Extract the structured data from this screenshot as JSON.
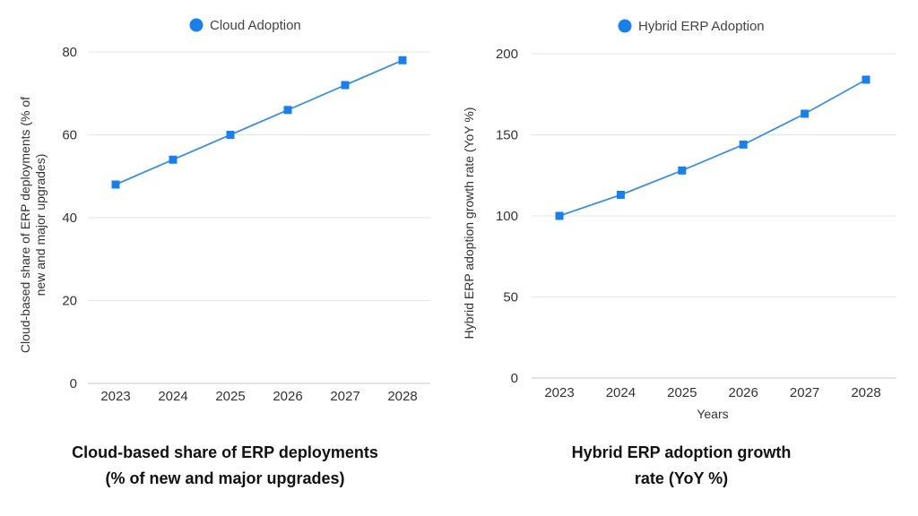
{
  "colors": {
    "series": "#1a7fe8",
    "line": "#3d8fd6"
  },
  "chart_data": [
    {
      "type": "line",
      "legend": "Cloud Adoption",
      "legend_position": "top",
      "categories": [
        "2023",
        "2024",
        "2025",
        "2026",
        "2027",
        "2028"
      ],
      "series": [
        {
          "name": "Cloud Adoption",
          "values": [
            48,
            54,
            60,
            66,
            72,
            78
          ]
        }
      ],
      "ylim": [
        0,
        80
      ],
      "yticks": [
        "0",
        "20",
        "40",
        "60",
        "80"
      ],
      "ylabel_lines": [
        "Cloud-based share of ERP deployments (% of",
        "new and major upgrades)"
      ],
      "xlabel": "",
      "title_lines": [
        "Cloud-based share of ERP deployments",
        "(% of new and major upgrades)"
      ],
      "grid": true
    },
    {
      "type": "line",
      "legend": "Hybrid ERP Adoption",
      "legend_position": "top",
      "categories": [
        "2023",
        "2024",
        "2025",
        "2026",
        "2027",
        "2028"
      ],
      "series": [
        {
          "name": "Hybrid ERP Adoption",
          "values": [
            100,
            113,
            128,
            144,
            163,
            184
          ]
        }
      ],
      "ylim": [
        0,
        200
      ],
      "yticks": [
        "0",
        "50",
        "100",
        "150",
        "200"
      ],
      "ylabel_lines": [
        "Hybrid ERP adoption growth rate (YoY %)"
      ],
      "xlabel": "Years",
      "title_lines": [
        "Hybrid ERP adoption growth",
        "rate (YoY %)"
      ],
      "grid": true
    }
  ]
}
